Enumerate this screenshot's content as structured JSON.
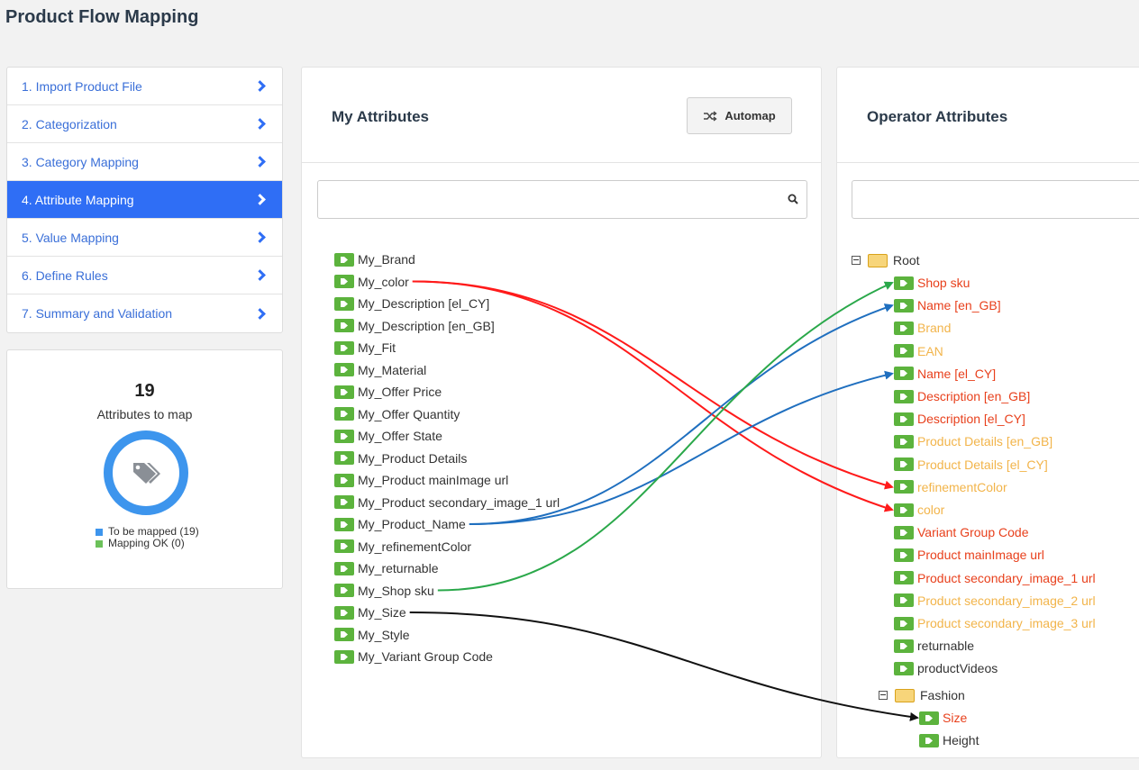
{
  "page_title": "Product Flow Mapping",
  "steps": [
    {
      "label": "1. Import Product File",
      "active": false
    },
    {
      "label": "2. Categorization",
      "active": false
    },
    {
      "label": "3. Category Mapping",
      "active": false
    },
    {
      "label": "4. Attribute Mapping",
      "active": true
    },
    {
      "label": "5. Value Mapping",
      "active": false
    },
    {
      "label": "6. Define Rules",
      "active": false
    },
    {
      "label": "7. Summary and Validation",
      "active": false
    }
  ],
  "stats": {
    "count": "19",
    "label": "Attributes to map",
    "legend": [
      {
        "label": "To be mapped (19)",
        "color": "#3d95ed"
      },
      {
        "label": "Mapping OK (0)",
        "color": "#6cc15a"
      }
    ]
  },
  "my_attributes": {
    "title": "My Attributes",
    "automap_label": "Automap",
    "items": [
      "My_Brand",
      "My_color",
      "My_Description [el_CY]",
      "My_Description [en_GB]",
      "My_Fit",
      "My_Material",
      "My_Offer Price",
      "My_Offer Quantity",
      "My_Offer State",
      "My_Product Details",
      "My_Product mainImage url",
      "My_Product secondary_image_1 url",
      "My_Product_Name",
      "My_refinementColor",
      "My_returnable",
      "My_Shop sku",
      "My_Size",
      "My_Style",
      "My_Variant Group Code"
    ]
  },
  "operator_attributes": {
    "title": "Operator Attributes",
    "root_label": "Root",
    "items": [
      {
        "label": "Shop sku",
        "status": "red"
      },
      {
        "label": "Name [en_GB]",
        "status": "red"
      },
      {
        "label": "Brand",
        "status": "orange"
      },
      {
        "label": "EAN",
        "status": "orange"
      },
      {
        "label": "Name [el_CY]",
        "status": "red"
      },
      {
        "label": "Description [en_GB]",
        "status": "red"
      },
      {
        "label": "Description [el_CY]",
        "status": "red"
      },
      {
        "label": "Product Details [en_GB]",
        "status": "orange"
      },
      {
        "label": "Product Details [el_CY]",
        "status": "orange"
      },
      {
        "label": "refinementColor",
        "status": "orange"
      },
      {
        "label": "color",
        "status": "orange"
      },
      {
        "label": "Variant Group Code",
        "status": "red"
      },
      {
        "label": "Product mainImage url",
        "status": "red"
      },
      {
        "label": "Product secondary_image_1 url",
        "status": "red"
      },
      {
        "label": "Product secondary_image_2 url",
        "status": "orange"
      },
      {
        "label": "Product secondary_image_3 url",
        "status": "orange"
      },
      {
        "label": "returnable",
        "status": "dark"
      },
      {
        "label": "productVideos",
        "status": "dark"
      }
    ],
    "fashion_label": "Fashion",
    "fashion_items": [
      {
        "label": "Size",
        "status": "red"
      },
      {
        "label": "Height",
        "status": "dark"
      }
    ]
  },
  "mappings": [
    {
      "from": "My_color",
      "to": "refinementColor",
      "color": "#ff1a1a"
    },
    {
      "from": "My_color",
      "to": "color",
      "color": "#ff1a1a"
    },
    {
      "from": "My_Product_Name",
      "to": "Name [en_GB]",
      "color": "#1f6fbf"
    },
    {
      "from": "My_Product_Name",
      "to": "Name [el_CY]",
      "color": "#1f6fbf"
    },
    {
      "from": "My_Shop sku",
      "to": "Shop sku",
      "color": "#2aa84a"
    },
    {
      "from": "My_Size",
      "to": "Size",
      "color": "#111111"
    }
  ],
  "icons": {
    "tag": "tag-icon",
    "folder": "folder-icon",
    "search": "search-icon",
    "shuffle": "shuffle-icon",
    "chevron": "chevron-right-icon"
  }
}
